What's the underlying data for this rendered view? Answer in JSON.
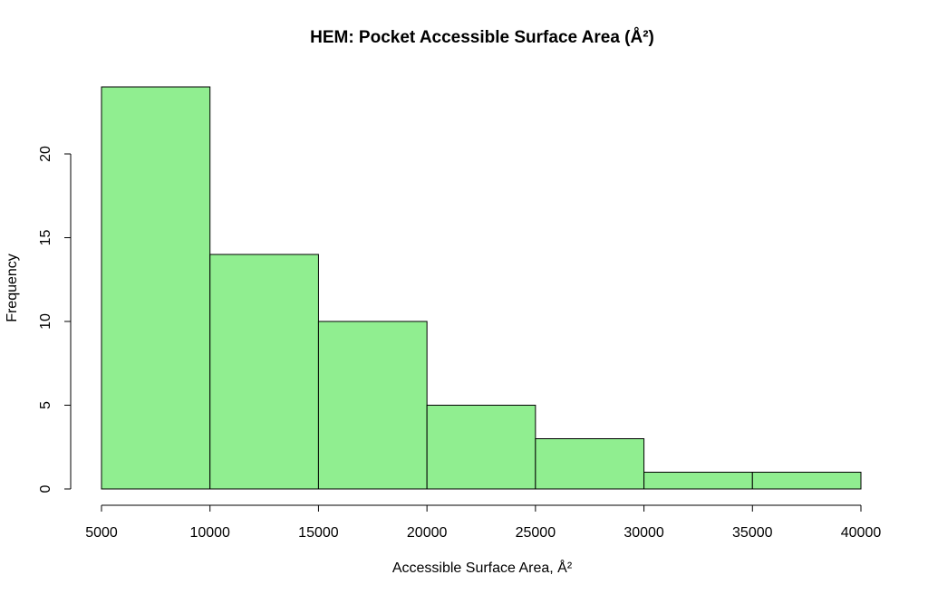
{
  "chart_data": {
    "type": "bar",
    "title": "HEM: Pocket Accessible Surface Area (Å²)",
    "xlabel": "Accessible Surface Area, Å²",
    "ylabel": "Frequency",
    "bins": [
      {
        "from": 5000,
        "to": 10000,
        "count": 24
      },
      {
        "from": 10000,
        "to": 15000,
        "count": 14
      },
      {
        "from": 15000,
        "to": 20000,
        "count": 10
      },
      {
        "from": 20000,
        "to": 25000,
        "count": 5
      },
      {
        "from": 25000,
        "to": 30000,
        "count": 3
      },
      {
        "from": 30000,
        "to": 35000,
        "count": 1
      },
      {
        "from": 35000,
        "to": 40000,
        "count": 1
      }
    ],
    "xlim": [
      5000,
      40000
    ],
    "ylim": [
      0,
      24
    ],
    "x_ticks": [
      5000,
      10000,
      15000,
      20000,
      25000,
      30000,
      35000,
      40000
    ],
    "y_ticks": [
      0,
      5,
      10,
      15,
      20
    ],
    "bar_color": "#90EE90",
    "grid": false
  }
}
